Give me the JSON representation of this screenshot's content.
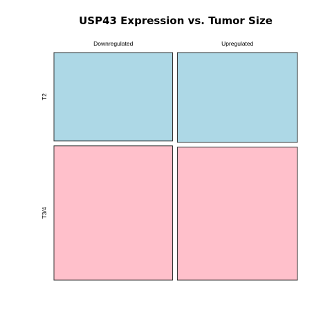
{
  "chart_data": {
    "type": "mosaic",
    "title": "USP43 Expression vs. Tumor Size",
    "columns": [
      "Downregulated",
      "Upregulated"
    ],
    "rows": [
      "T2",
      "T3/4"
    ],
    "column_proportions": [
      0.497,
      0.503
    ],
    "row_proportions_within_column": [
      [
        0.397,
        0.603
      ],
      [
        0.403,
        0.597
      ]
    ],
    "row_colors": [
      "#add8e6",
      "#ffc0cb"
    ],
    "border_color": "#333333"
  }
}
